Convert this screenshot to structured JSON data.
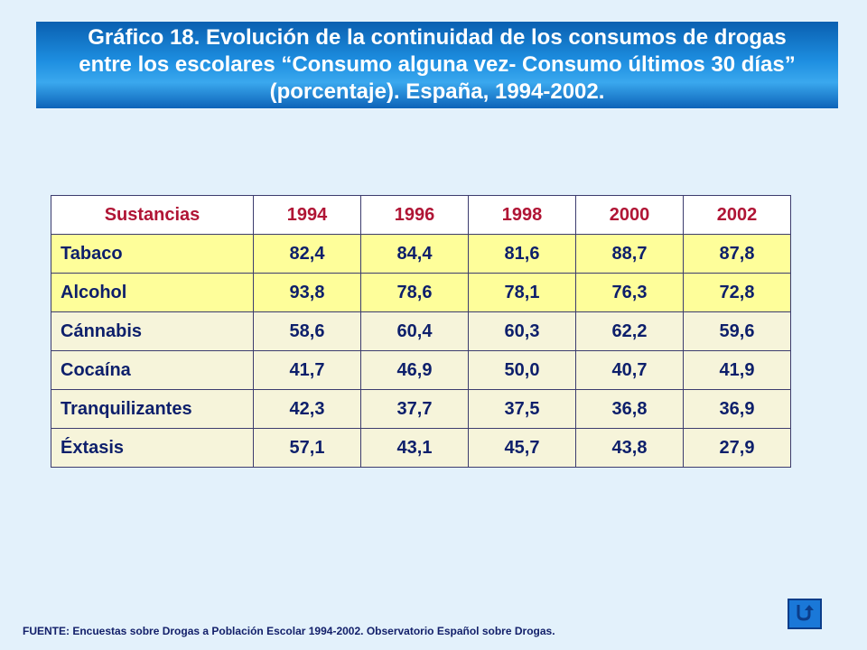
{
  "title": "Gráfico 18. Evolución de la continuidad de los consumos de drogas entre los escolares “Consumo alguna vez- Consumo últimos 30 días” (porcentaje). España, 1994-2002.",
  "table": {
    "headers": [
      "Sustancias",
      "1994",
      "1996",
      "1998",
      "2000",
      "2002"
    ],
    "rows": [
      {
        "name": "Tabaco",
        "values": [
          "82,4",
          "84,4",
          "81,6",
          "88,7",
          "87,8"
        ],
        "highlight": "yellow"
      },
      {
        "name": "Alcohol",
        "values": [
          "93,8",
          "78,6",
          "78,1",
          "76,3",
          "72,8"
        ],
        "highlight": "yellow"
      },
      {
        "name": "Cánnabis",
        "values": [
          "58,6",
          "60,4",
          "60,3",
          "62,2",
          "59,6"
        ],
        "highlight": "cream"
      },
      {
        "name": "Cocaína",
        "values": [
          "41,7",
          "46,9",
          "50,0",
          "40,7",
          "41,9"
        ],
        "highlight": "cream"
      },
      {
        "name": "Tranquilizantes",
        "values": [
          "42,3",
          "37,7",
          "37,5",
          "36,8",
          "36,9"
        ],
        "highlight": "cream"
      },
      {
        "name": "Éxtasis",
        "values": [
          "57,1",
          "43,1",
          "45,7",
          "43,8",
          "27,9"
        ],
        "highlight": "cream"
      }
    ]
  },
  "footer": "FUENTE: Encuestas sobre Drogas a Población Escolar 1994-2002.  Observatorio Español sobre Drogas.",
  "nav": {
    "return_icon": "u-turn-return-icon"
  },
  "colors": {
    "background": "#e3f1fb",
    "banner": "#1d8ee0",
    "header_text": "#b01535",
    "body_text": "#0d1f6b",
    "row_yellow": "#fefe9a",
    "row_cream": "#f6f4da"
  }
}
